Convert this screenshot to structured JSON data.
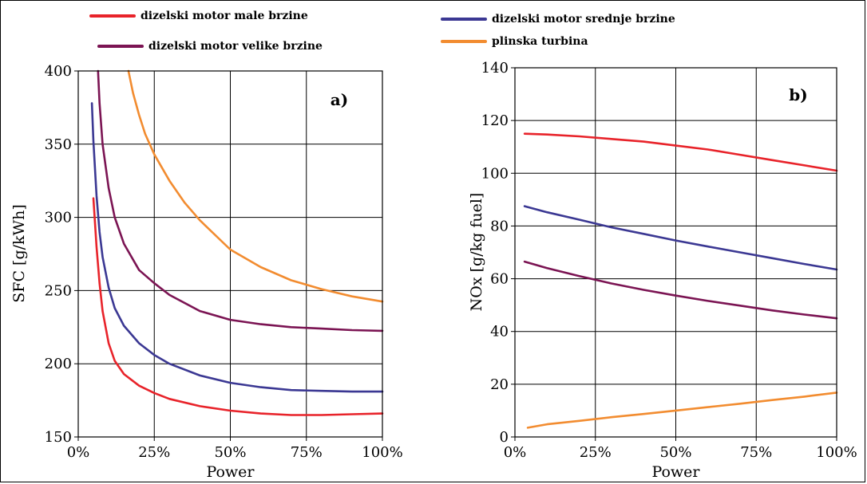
{
  "colors": {
    "red": "#e8232a",
    "blue": "#3b3893",
    "purple": "#7b1453",
    "orange": "#f28c30"
  },
  "legend": {
    "items": [
      {
        "key": "low",
        "label": "dizelski motor male brzine",
        "color": "#e8232a"
      },
      {
        "key": "high",
        "label": "dizelski motor velike brzine",
        "color": "#7b1453"
      },
      {
        "key": "medium",
        "label": "dizelski motor srednje brzine",
        "color": "#3b3893"
      },
      {
        "key": "gas",
        "label": "plinska turbina",
        "color": "#f28c30"
      }
    ],
    "placement": "top"
  },
  "chart_data": [
    {
      "type": "line",
      "panel_label": "a)",
      "xlabel": "Power",
      "ylabel": "SFC [g/kWh]",
      "xlim": [
        0,
        100
      ],
      "ylim": [
        150,
        400
      ],
      "x_ticks": [
        0,
        25,
        50,
        75,
        100
      ],
      "x_tick_labels": [
        "0%",
        "25%",
        "50%",
        "75%",
        "100%"
      ],
      "y_ticks": [
        150,
        200,
        250,
        300,
        350,
        400
      ],
      "y_tick_labels": [
        "150",
        "200",
        "250",
        "300",
        "350",
        "400"
      ],
      "grid": true,
      "series": [
        {
          "name": "dizelski motor male brzine",
          "color": "#e8232a",
          "x": [
            5,
            6,
            7,
            8,
            10,
            12,
            15,
            20,
            25,
            30,
            40,
            50,
            60,
            70,
            80,
            90,
            100
          ],
          "y": [
            313,
            280,
            255,
            236,
            214,
            202,
            193,
            185,
            180,
            176,
            171,
            168,
            166,
            165,
            165,
            165.5,
            166
          ]
        },
        {
          "name": "dizelski motor srednje brzine",
          "color": "#3b3893",
          "x": [
            4.5,
            5,
            6,
            7,
            8,
            10,
            12,
            15,
            20,
            25,
            30,
            40,
            50,
            60,
            70,
            80,
            90,
            100
          ],
          "y": [
            378,
            352,
            315,
            290,
            273,
            252,
            238,
            226,
            214,
            206,
            200,
            192,
            187,
            184,
            182,
            181.5,
            181,
            181
          ]
        },
        {
          "name": "dizelski motor velike brzine",
          "color": "#7b1453",
          "x": [
            6.5,
            7,
            8,
            10,
            12,
            15,
            20,
            25,
            30,
            40,
            50,
            60,
            70,
            80,
            90,
            100
          ],
          "y": [
            400,
            378,
            350,
            320,
            300,
            282,
            264,
            255,
            247,
            236,
            230,
            227,
            225,
            224,
            223,
            222.5
          ]
        },
        {
          "name": "plinska turbina",
          "color": "#f28c30",
          "x": [
            16.5,
            18,
            20,
            22,
            25,
            30,
            35,
            40,
            50,
            60,
            70,
            80,
            90,
            100
          ],
          "y": [
            400,
            385,
            370,
            357,
            343,
            325,
            310,
            298,
            278,
            266,
            257,
            251,
            246,
            242.5
          ]
        }
      ]
    },
    {
      "type": "line",
      "panel_label": "b)",
      "xlabel": "Power",
      "ylabel": "NOx [g/kg fuel]",
      "xlim": [
        0,
        100
      ],
      "ylim": [
        0,
        140
      ],
      "x_ticks": [
        0,
        25,
        50,
        75,
        100
      ],
      "x_tick_labels": [
        "0%",
        "25%",
        "50%",
        "75%",
        "100%"
      ],
      "y_ticks": [
        0,
        20,
        40,
        60,
        80,
        100,
        120,
        140
      ],
      "y_tick_labels": [
        "0",
        "20",
        "40",
        "60",
        "80",
        "100",
        "120",
        "140"
      ],
      "grid": true,
      "series": [
        {
          "name": "dizelski motor male brzine",
          "color": "#e8232a",
          "x": [
            3,
            10,
            20,
            30,
            40,
            50,
            60,
            70,
            80,
            90,
            100
          ],
          "y": [
            115,
            114.7,
            114,
            113,
            112,
            110.5,
            109,
            107,
            105,
            103,
            101
          ]
        },
        {
          "name": "dizelski motor srednje brzine",
          "color": "#3b3893",
          "x": [
            3,
            10,
            20,
            30,
            40,
            50,
            60,
            70,
            80,
            90,
            100
          ],
          "y": [
            87.5,
            85.2,
            82.4,
            79.5,
            77,
            74.5,
            72.2,
            70,
            67.8,
            65.6,
            63.5
          ]
        },
        {
          "name": "dizelski motor velike brzine",
          "color": "#7b1453",
          "x": [
            3,
            10,
            20,
            30,
            40,
            50,
            60,
            70,
            80,
            90,
            100
          ],
          "y": [
            66.5,
            64,
            61,
            58.2,
            55.8,
            53.6,
            51.6,
            49.8,
            48,
            46.4,
            45
          ]
        },
        {
          "name": "plinska turbina",
          "color": "#f28c30",
          "x": [
            4,
            10,
            20,
            30,
            40,
            50,
            60,
            70,
            80,
            90,
            100
          ],
          "y": [
            3.5,
            4.8,
            6.1,
            7.5,
            8.7,
            10,
            11.3,
            12.6,
            14,
            15.3,
            16.8
          ]
        }
      ]
    }
  ]
}
